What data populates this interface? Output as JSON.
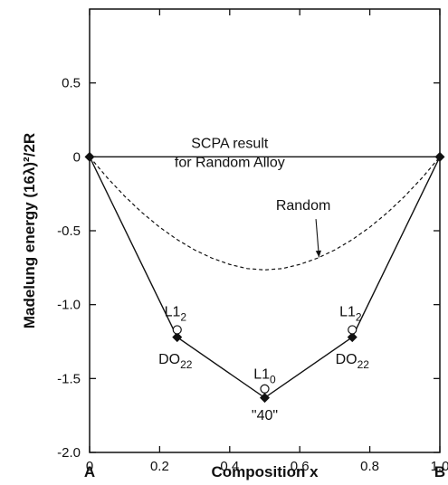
{
  "chart_data": {
    "type": "line",
    "title": "",
    "xlabel": "Composition x",
    "ylabel": "Madelung energy  (16λ)²/2R",
    "xlim": [
      0,
      1.0
    ],
    "ylim": [
      -2.0,
      1.0
    ],
    "xticks": [
      {
        "value": 0,
        "label": "0"
      },
      {
        "value": 0.2,
        "label": "0.2"
      },
      {
        "value": 0.4,
        "label": "0.4"
      },
      {
        "value": 0.6,
        "label": "0.6"
      },
      {
        "value": 0.8,
        "label": "0.8"
      },
      {
        "value": 1.0,
        "label": "1.0"
      }
    ],
    "yticks": [
      {
        "value": 0.5,
        "label": "0.5"
      },
      {
        "value": 0,
        "label": "0"
      },
      {
        "value": -0.5,
        "label": "-0.5"
      },
      {
        "value": -1.0,
        "label": "-1.0"
      },
      {
        "value": -1.5,
        "label": "-1.5"
      },
      {
        "value": -2.0,
        "label": "-2.0"
      }
    ],
    "end_labels": {
      "left": "A",
      "right": "B"
    },
    "series": [
      {
        "style": "solid",
        "x": [
          0,
          1.0
        ],
        "y": [
          0,
          0
        ]
      },
      {
        "style": "dashed",
        "x": [
          0,
          0.05,
          0.1,
          0.15,
          0.2,
          0.25,
          0.3,
          0.35,
          0.4,
          0.45,
          0.5,
          0.55,
          0.6,
          0.65,
          0.7,
          0.75,
          0.8,
          0.85,
          0.9,
          0.95,
          1.0
        ],
        "y": [
          0,
          -0.14,
          -0.266,
          -0.378,
          -0.476,
          -0.56,
          -0.63,
          -0.686,
          -0.728,
          -0.756,
          -0.765,
          -0.756,
          -0.728,
          -0.686,
          -0.63,
          -0.56,
          -0.476,
          -0.378,
          -0.266,
          -0.14,
          0
        ]
      },
      {
        "style": "solid-markers",
        "marker": "filled-diamond",
        "x": [
          0,
          0.25,
          0.5,
          0.75,
          1.0
        ],
        "y": [
          0,
          -1.22,
          -1.63,
          -1.22,
          0
        ]
      },
      {
        "style": "markers",
        "marker": "open-circle",
        "x": [
          0.25,
          0.5,
          0.75
        ],
        "y": [
          -1.17,
          -1.57,
          -1.17
        ]
      }
    ],
    "annotations": [
      {
        "id": "scpa",
        "lines": [
          "SCPA result",
          "for Random Alloy"
        ],
        "x": 0.4,
        "y": 0.06
      },
      {
        "id": "random",
        "text": "Random",
        "x": 0.61,
        "y": -0.36,
        "arrow_to": [
          0.655,
          -0.68
        ]
      },
      {
        "id": "l12-left",
        "main": "L1",
        "sub": "2",
        "x": 0.245,
        "y": -1.08
      },
      {
        "id": "do22-left",
        "main": "DO",
        "sub": "22",
        "x": 0.245,
        "y": -1.4
      },
      {
        "id": "l10",
        "main": "L1",
        "sub": "0",
        "x": 0.5,
        "y": -1.5
      },
      {
        "id": "label-40",
        "text": "\"40\"",
        "x": 0.5,
        "y": -1.78
      },
      {
        "id": "l12-right",
        "main": "L1",
        "sub": "2",
        "x": 0.745,
        "y": -1.08
      },
      {
        "id": "do22-right",
        "main": "DO",
        "sub": "22",
        "x": 0.75,
        "y": -1.4
      }
    ]
  }
}
